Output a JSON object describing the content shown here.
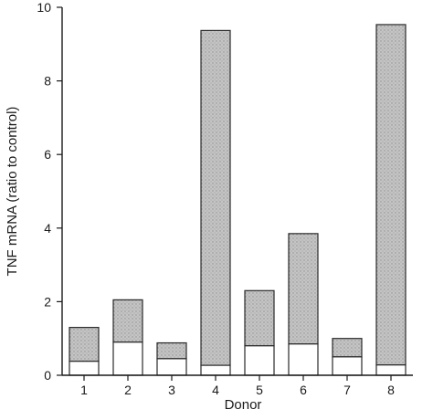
{
  "chart_data": {
    "type": "bar",
    "stacked": true,
    "xlabel": "Donor",
    "ylabel": "TNF mRNA (ratio to control)",
    "ylim": [
      0,
      10
    ],
    "yticks": [
      "0",
      "2",
      "4",
      "6",
      "8",
      "10"
    ],
    "categories": [
      "1",
      "2",
      "3",
      "4",
      "5",
      "6",
      "7",
      "8"
    ],
    "series": [
      {
        "values": [
          0.38,
          0.9,
          0.45,
          0.27,
          0.8,
          0.85,
          0.5,
          0.28
        ],
        "color": "#ffffff"
      },
      {
        "values": [
          0.92,
          1.15,
          0.43,
          9.1,
          1.5,
          3.0,
          0.5,
          9.25
        ],
        "color": "#bdbdbd"
      }
    ],
    "totals": [
      1.3,
      2.05,
      0.88,
      9.37,
      2.3,
      3.85,
      1.0,
      9.53
    ],
    "grid": false
  }
}
